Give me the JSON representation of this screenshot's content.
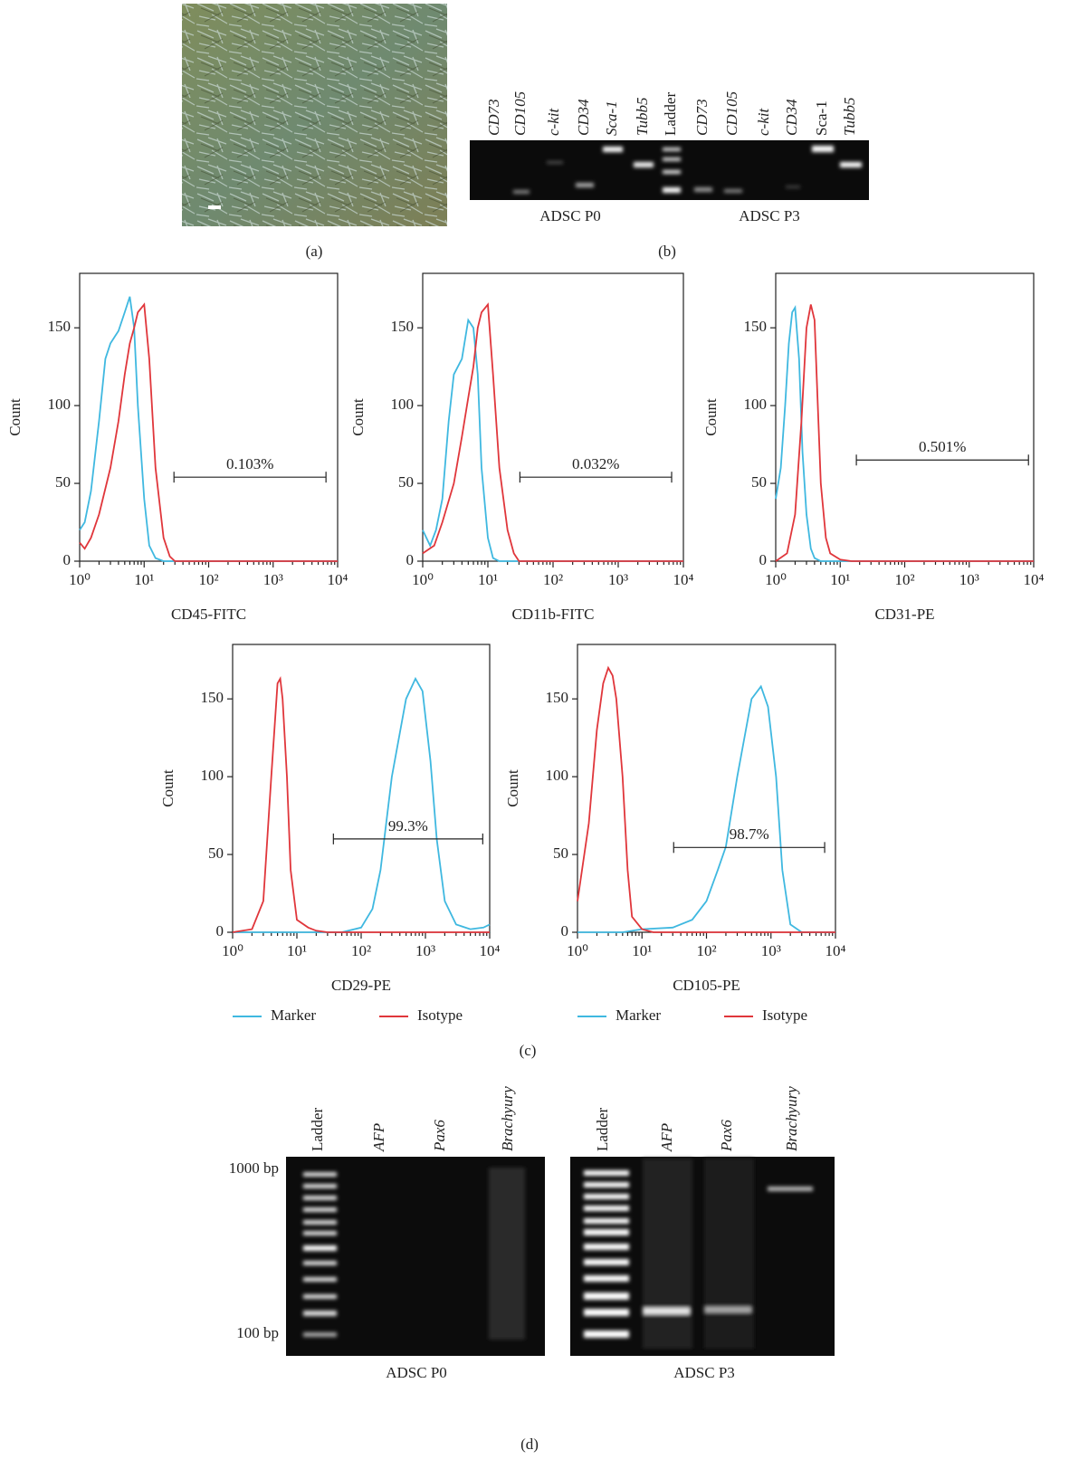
{
  "panels": {
    "a": {
      "label": "(a)"
    },
    "b": {
      "label": "(b)",
      "lanes": [
        "CD73",
        "CD105",
        "c-kit",
        "CD34",
        "Sca-1",
        "Tubb5",
        "Ladder",
        "CD73",
        "CD105",
        "c-kit",
        "CD34",
        "Sca-1",
        "Tubb5"
      ],
      "groups": [
        "ADSC P0",
        "ADSC P3"
      ]
    },
    "c": {
      "label": "(c)"
    },
    "d": {
      "label": "(d)",
      "size_markers": [
        "1000 bp",
        "100 bp"
      ],
      "gels": [
        {
          "name": "ADSC P0",
          "lanes": [
            "Ladder",
            "AFP",
            "Pax6",
            "Brachyury"
          ]
        },
        {
          "name": "ADSC P3",
          "lanes": [
            "Ladder",
            "AFP",
            "Pax6",
            "Brachyury"
          ]
        }
      ]
    }
  },
  "chart_data": [
    {
      "type": "line",
      "x_label": "CD45-FITC",
      "y_label": "Count",
      "xscale": "log",
      "xlim": [
        1,
        10000
      ],
      "xticks": [
        {
          "value": 1,
          "label": "10⁰"
        },
        {
          "value": 10,
          "label": "10¹"
        },
        {
          "value": 100,
          "label": "10²"
        },
        {
          "value": 1000,
          "label": "10³"
        },
        {
          "value": 10000,
          "label": "10⁴"
        }
      ],
      "ylim": [
        0,
        185
      ],
      "yticks": [
        0,
        50,
        100,
        150
      ],
      "legend": false,
      "series": [
        {
          "name": "Marker",
          "color": "#3fb8e0",
          "x": [
            1,
            1.2,
            1.5,
            2,
            2.5,
            3,
            4,
            5,
            6,
            7,
            8,
            10,
            12,
            15,
            20,
            10000
          ],
          "values": [
            20,
            25,
            45,
            90,
            130,
            140,
            148,
            160,
            170,
            150,
            100,
            40,
            10,
            2,
            0,
            0
          ]
        },
        {
          "name": "Isotype",
          "color": "#e0363b",
          "x": [
            1,
            1.2,
            1.5,
            2,
            3,
            4,
            5,
            6,
            7,
            8,
            10,
            12,
            15,
            20,
            25,
            30,
            10000
          ],
          "values": [
            12,
            8,
            15,
            30,
            60,
            90,
            120,
            140,
            150,
            160,
            165,
            130,
            60,
            15,
            3,
            0,
            0
          ]
        }
      ],
      "gate": {
        "label": "0.103%",
        "x": [
          29,
          6600
        ],
        "y": 54
      }
    },
    {
      "type": "line",
      "x_label": "CD11b-FITC",
      "y_label": "Count",
      "xscale": "log",
      "xlim": [
        1,
        10000
      ],
      "xticks": [
        {
          "value": 1,
          "label": "10⁰"
        },
        {
          "value": 10,
          "label": "10¹"
        },
        {
          "value": 100,
          "label": "10²"
        },
        {
          "value": 1000,
          "label": "10³"
        },
        {
          "value": 10000,
          "label": "10⁴"
        }
      ],
      "ylim": [
        0,
        185
      ],
      "yticks": [
        0,
        50,
        100,
        150
      ],
      "legend": false,
      "series": [
        {
          "name": "Marker",
          "color": "#3fb8e0",
          "x": [
            1,
            1.3,
            1.6,
            2,
            2.5,
            3,
            4,
            5,
            6,
            7,
            8,
            10,
            12,
            15,
            10000
          ],
          "values": [
            20,
            10,
            20,
            40,
            90,
            120,
            130,
            155,
            150,
            120,
            60,
            15,
            2,
            0,
            0
          ]
        },
        {
          "name": "Isotype",
          "color": "#e0363b",
          "x": [
            1,
            1.5,
            2,
            3,
            4,
            5,
            6,
            7,
            8,
            10,
            12,
            15,
            20,
            25,
            30,
            10000
          ],
          "values": [
            5,
            10,
            25,
            50,
            80,
            105,
            125,
            150,
            160,
            165,
            120,
            60,
            20,
            5,
            0,
            0
          ]
        }
      ],
      "gate": {
        "label": "0.032%",
        "x": [
          31,
          6600
        ],
        "y": 54
      }
    },
    {
      "type": "line",
      "x_label": "CD31-PE",
      "y_label": "Count",
      "xscale": "log",
      "xlim": [
        1,
        10000
      ],
      "xticks": [
        {
          "value": 1,
          "label": "10⁰"
        },
        {
          "value": 10,
          "label": "10¹"
        },
        {
          "value": 100,
          "label": "10²"
        },
        {
          "value": 1000,
          "label": "10³"
        },
        {
          "value": 10000,
          "label": "10⁴"
        }
      ],
      "ylim": [
        0,
        185
      ],
      "yticks": [
        0,
        50,
        100,
        150
      ],
      "legend": false,
      "series": [
        {
          "name": "Marker",
          "color": "#3fb8e0",
          "x": [
            1,
            1.2,
            1.4,
            1.6,
            1.8,
            2,
            2.3,
            2.6,
            3,
            3.5,
            4,
            5,
            10000
          ],
          "values": [
            40,
            60,
            100,
            140,
            160,
            163,
            130,
            70,
            30,
            8,
            2,
            0,
            0
          ]
        },
        {
          "name": "Isotype",
          "color": "#e0363b",
          "x": [
            1,
            1.5,
            2,
            2.5,
            3,
            3.5,
            4,
            4.5,
            5,
            6,
            7,
            10,
            15,
            10000
          ],
          "values": [
            0,
            5,
            30,
            90,
            150,
            165,
            155,
            100,
            50,
            15,
            5,
            1,
            0,
            0
          ]
        }
      ],
      "gate": {
        "label": "0.501%",
        "x": [
          17.8,
          8300
        ],
        "y": 65
      }
    },
    {
      "type": "line",
      "x_label": "CD29-PE",
      "y_label": "Count",
      "xscale": "log",
      "xlim": [
        1,
        10000
      ],
      "xticks": [
        {
          "value": 1,
          "label": "10⁰"
        },
        {
          "value": 10,
          "label": "10¹"
        },
        {
          "value": 100,
          "label": "10²"
        },
        {
          "value": 1000,
          "label": "10³"
        },
        {
          "value": 10000,
          "label": "10⁴"
        }
      ],
      "ylim": [
        0,
        185
      ],
      "yticks": [
        0,
        50,
        100,
        150
      ],
      "legend": true,
      "series": [
        {
          "name": "Marker",
          "color": "#3fb8e0",
          "x": [
            1,
            50,
            100,
            150,
            200,
            300,
            500,
            700,
            900,
            1200,
            1500,
            2000,
            3000,
            5000,
            8000,
            10000
          ],
          "values": [
            0,
            0,
            3,
            15,
            40,
            100,
            150,
            163,
            155,
            110,
            60,
            20,
            5,
            2,
            3,
            5
          ]
        },
        {
          "name": "Isotype",
          "color": "#e0363b",
          "x": [
            1,
            2,
            3,
            4,
            5,
            5.5,
            6,
            7,
            8,
            10,
            15,
            20,
            30,
            10000
          ],
          "values": [
            0,
            2,
            20,
            100,
            160,
            163,
            150,
            100,
            40,
            8,
            3,
            1,
            0,
            0
          ]
        }
      ],
      "gate": {
        "label": "99.3%",
        "x": [
          37,
          7800
        ],
        "y": 60
      }
    },
    {
      "type": "line",
      "x_label": "CD105-PE",
      "y_label": "Count",
      "xscale": "log",
      "xlim": [
        1,
        10000
      ],
      "xticks": [
        {
          "value": 1,
          "label": "10⁰"
        },
        {
          "value": 10,
          "label": "10¹"
        },
        {
          "value": 100,
          "label": "10²"
        },
        {
          "value": 1000,
          "label": "10³"
        },
        {
          "value": 10000,
          "label": "10⁴"
        }
      ],
      "ylim": [
        0,
        185
      ],
      "yticks": [
        0,
        50,
        100,
        150
      ],
      "legend": true,
      "series": [
        {
          "name": "Marker",
          "color": "#3fb8e0",
          "x": [
            1,
            5,
            10,
            30,
            60,
            100,
            150,
            200,
            300,
            500,
            700,
            900,
            1200,
            1500,
            2000,
            3000,
            10000
          ],
          "values": [
            0,
            0,
            2,
            3,
            8,
            20,
            40,
            55,
            100,
            150,
            158,
            145,
            100,
            40,
            5,
            0,
            0
          ]
        },
        {
          "name": "Isotype",
          "color": "#e0363b",
          "x": [
            1,
            1.5,
            2,
            2.5,
            3,
            3.5,
            4,
            5,
            6,
            7,
            10,
            15,
            10000
          ],
          "values": [
            20,
            70,
            130,
            160,
            170,
            165,
            150,
            100,
            40,
            10,
            2,
            0,
            0
          ]
        }
      ],
      "gate": {
        "label": "98.7%",
        "x": [
          31,
          6800
        ],
        "y": 54.5
      }
    }
  ]
}
